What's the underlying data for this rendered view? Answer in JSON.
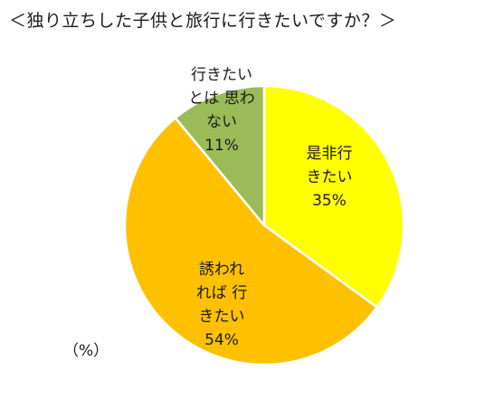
{
  "chart_data": {
    "type": "pie",
    "title": "＜独り立ちした子供と旅行に行きたいですか？＞",
    "unit_label": "（%）",
    "slices": [
      {
        "label_lines": [
          "是非行",
          "きたい"
        ],
        "value": 35,
        "value_label": "35%",
        "color": "#ffff00"
      },
      {
        "label_lines": [
          "誘われ",
          "れば 行",
          "きたい"
        ],
        "value": 54,
        "value_label": "54%",
        "color": "#ffc000"
      },
      {
        "label_lines": [
          "行きたい",
          "とは 思わ",
          "ない"
        ],
        "value": 11,
        "value_label": "11%",
        "color": "#9bbb59"
      }
    ],
    "start_angle_deg": 0,
    "direction": "clockwise",
    "border_color": "#ffffff"
  }
}
